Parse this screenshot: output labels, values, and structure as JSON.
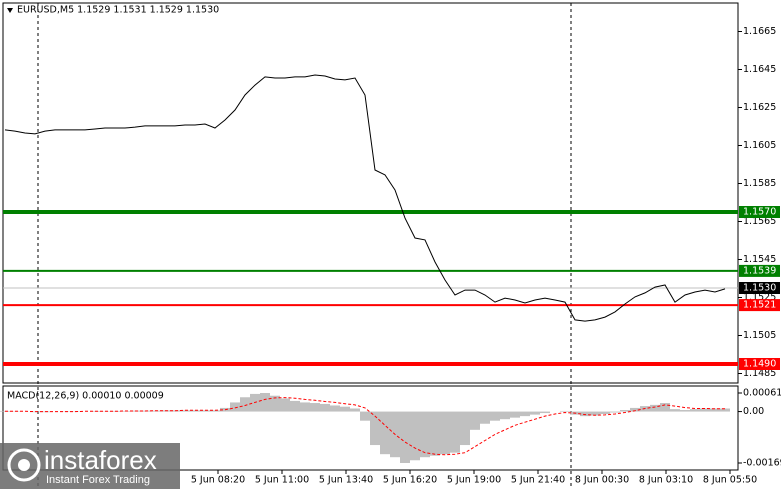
{
  "chart_data": [
    {
      "type": "line",
      "title": "EURUSD,M5  1.1529 1.1531 1.1529 1.1530",
      "color": "#000000",
      "values": [
        1.16132,
        1.16126,
        1.16116,
        1.16111,
        1.16126,
        1.16132,
        1.16132,
        1.16132,
        1.16132,
        1.16137,
        1.16142,
        1.16142,
        1.16142,
        1.16147,
        1.16153,
        1.16153,
        1.16153,
        1.16153,
        1.16158,
        1.16158,
        1.16163,
        1.16142,
        1.16184,
        1.16237,
        1.16316,
        1.16368,
        1.16411,
        1.16405,
        1.16405,
        1.16411,
        1.16411,
        1.16421,
        1.16416,
        1.164,
        1.16395,
        1.16405,
        1.16316,
        1.15921,
        1.15895,
        1.15816,
        1.15668,
        1.15563,
        1.15553,
        1.15437,
        1.15342,
        1.15263,
        1.15289,
        1.15289,
        1.15263,
        1.15226,
        1.15247,
        1.15237,
        1.15221,
        1.15237,
        1.15247,
        1.15237,
        1.15226,
        1.15132,
        1.15126,
        1.15132,
        1.15147,
        1.15174,
        1.15216,
        1.15253,
        1.15274,
        1.15305,
        1.15316,
        1.15226,
        1.15263,
        1.15279,
        1.15289,
        1.15279,
        1.15295
      ],
      "xlim": [
        -0.2,
        73.3
      ],
      "xticks": [
        {
          "value": 21.3,
          "label": "5 Jun 08:20"
        },
        {
          "value": 27.7,
          "label": "5 Jun 11:00"
        },
        {
          "value": 34.1,
          "label": "5 Jun 13:40"
        },
        {
          "value": 40.5,
          "label": "5 Jun 16:20"
        },
        {
          "value": 46.9,
          "label": "5 Jun 19:00"
        },
        {
          "value": 53.3,
          "label": "5 Jun 21:40"
        },
        {
          "value": 59.7,
          "label": "8 Jun 00:30"
        },
        {
          "value": 66.1,
          "label": "8 Jun 03:10"
        },
        {
          "value": 72.5,
          "label": "8 Jun 05:50"
        }
      ],
      "ylim": [
        1.148,
        1.168
      ],
      "yticks": [
        1.1665,
        1.1645,
        1.1625,
        1.1605,
        1.1585,
        1.1565,
        1.1545,
        1.1525,
        1.1505,
        1.1485
      ],
      "levels": [
        {
          "value": 1.157,
          "label": "1.1570",
          "color": "#008000"
        },
        {
          "value": 1.1539,
          "label": "1.1539",
          "color": "#008000"
        },
        {
          "value": 1.1521,
          "label": "1.1521",
          "color": "#ff0000"
        },
        {
          "value": 1.149,
          "label": "1.1490",
          "color": "#ff0000"
        }
      ],
      "current_price": {
        "value": 1.153,
        "label": "1.1530",
        "color": "#000000"
      }
    },
    {
      "type": "bar",
      "title": "MACD(12,26,9) 0.00010 0.00009",
      "color": "#c0c0c0",
      "values": [
        2e-05,
        1e-05,
        0,
        -2e-05,
        -2e-05,
        0,
        1e-05,
        1e-05,
        0,
        2e-05,
        1e-05,
        2e-05,
        2e-05,
        3e-05,
        3e-05,
        3e-05,
        4e-05,
        4e-05,
        4e-05,
        4e-05,
        4e-05,
        4e-05,
        0.00012,
        0.0003,
        0.00047,
        0.00058,
        0.00061,
        0.00052,
        0.00043,
        0.00035,
        0.0003,
        0.00028,
        0.00025,
        0.0002,
        0.00016,
        0.0001,
        -0.0003,
        -0.0011,
        -0.0014,
        -0.0015,
        -0.00169,
        -0.0016,
        -0.0015,
        -0.00145,
        -0.0014,
        -0.00135,
        -0.0011,
        -0.0006,
        -0.0004,
        -0.0003,
        -0.00025,
        -0.0002,
        -0.00015,
        -0.0001,
        -5e-05,
        0,
        2e-05,
        -0.0001,
        -0.00015,
        -0.00013,
        -8e-05,
        -3e-05,
        5e-05,
        0.00012,
        0.00018,
        0.00022,
        0.00028,
        8e-05,
        5e-05,
        8e-05,
        0.0001,
        0.0001,
        0.0001
      ],
      "signal": {
        "color": "#ff0000",
        "values": [
          1e-05,
          1e-05,
          1e-05,
          0,
          0,
          0,
          0,
          0,
          1e-05,
          1e-05,
          1e-05,
          1e-05,
          2e-05,
          2e-05,
          2e-05,
          3e-05,
          3e-05,
          3e-05,
          4e-05,
          4e-05,
          4e-05,
          4e-05,
          6e-05,
          0.00012,
          0.0002,
          0.0003,
          0.0004,
          0.00045,
          0.00046,
          0.00044,
          0.0004,
          0.00037,
          0.00033,
          0.0003,
          0.00026,
          0.00022,
          0.00012,
          -0.00015,
          -0.00045,
          -0.00075,
          -0.001,
          -0.0012,
          -0.00135,
          -0.0014,
          -0.00142,
          -0.0014,
          -0.00135,
          -0.00115,
          -0.00095,
          -0.00075,
          -0.0006,
          -0.00045,
          -0.00035,
          -0.00025,
          -0.00015,
          -8e-05,
          -3e-05,
          -5e-05,
          -0.0001,
          -0.00012,
          -0.00011,
          -8e-05,
          -3e-05,
          3e-05,
          0.0001,
          0.00015,
          0.00022,
          0.00018,
          0.00013,
          0.0001,
          0.0001,
          9e-05,
          9e-05
        ]
      },
      "xlim": [
        -0.2,
        73.3
      ],
      "ylim": [
        -0.00169,
        0.00061
      ],
      "yticks": [
        0.00061,
        {
          "value": 0,
          "label": "0.00"
        },
        -0.00169
      ]
    }
  ],
  "watermark": {
    "brand": "instaforex",
    "tagline": "Instant Forex Trading"
  }
}
